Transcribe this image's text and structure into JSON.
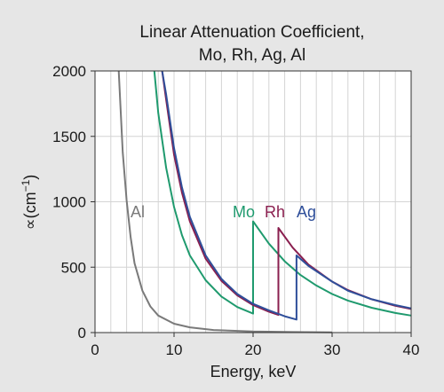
{
  "chart_data": {
    "type": "line",
    "title_line1": "Linear Attenuation Coefficient,",
    "title_line2": "Mo, Rh, Ag, Al",
    "xlabel": "Energy, keV",
    "ylabel_prefix": "∝(cm",
    "ylabel_sup": "−1",
    "ylabel_suffix": ")",
    "xlim": [
      0,
      40
    ],
    "ylim": [
      0,
      2000
    ],
    "x_ticks": [
      0,
      10,
      20,
      30,
      40
    ],
    "y_ticks": [
      0,
      500,
      1000,
      1500,
      2000
    ],
    "x_minor_step": 2,
    "grid": true,
    "series": [
      {
        "name": "Al",
        "color": "#7a7a7a",
        "x": [
          3,
          3.5,
          4,
          4.5,
          5,
          6,
          7,
          8,
          10,
          12,
          15,
          20,
          25,
          30
        ],
        "y": [
          2000,
          1380,
          1010,
          730,
          530,
          320,
          200,
          130,
          68,
          40,
          20,
          8,
          4,
          2
        ]
      },
      {
        "name": "Mo",
        "color": "#1f9a6e",
        "x": [
          7.5,
          8,
          9,
          10,
          11,
          12,
          14,
          16,
          18,
          20,
          20,
          22,
          24,
          26,
          28,
          30,
          32,
          35,
          38,
          40
        ],
        "y": [
          2000,
          1680,
          1260,
          960,
          745,
          590,
          400,
          275,
          195,
          145,
          850,
          680,
          545,
          440,
          360,
          295,
          245,
          190,
          150,
          130
        ]
      },
      {
        "name": "Rh",
        "color": "#8a1f4f",
        "x": [
          8.5,
          9,
          10,
          11,
          12,
          14,
          16,
          18,
          20,
          22,
          23.2,
          23.2,
          25,
          27,
          30,
          32,
          35,
          38,
          40
        ],
        "y": [
          2000,
          1780,
          1360,
          1070,
          850,
          565,
          395,
          285,
          210,
          160,
          135,
          800,
          650,
          520,
          390,
          325,
          255,
          205,
          180
        ]
      },
      {
        "name": "Ag",
        "color": "#2f4f9a",
        "x": [
          8.5,
          9,
          10,
          11,
          12,
          14,
          16,
          18,
          20,
          22,
          24,
          25.5,
          25.5,
          27,
          30,
          32,
          35,
          38,
          40
        ],
        "y": [
          2000,
          1820,
          1410,
          1110,
          885,
          590,
          410,
          295,
          220,
          170,
          125,
          100,
          590,
          510,
          390,
          320,
          255,
          210,
          185
        ]
      }
    ]
  }
}
